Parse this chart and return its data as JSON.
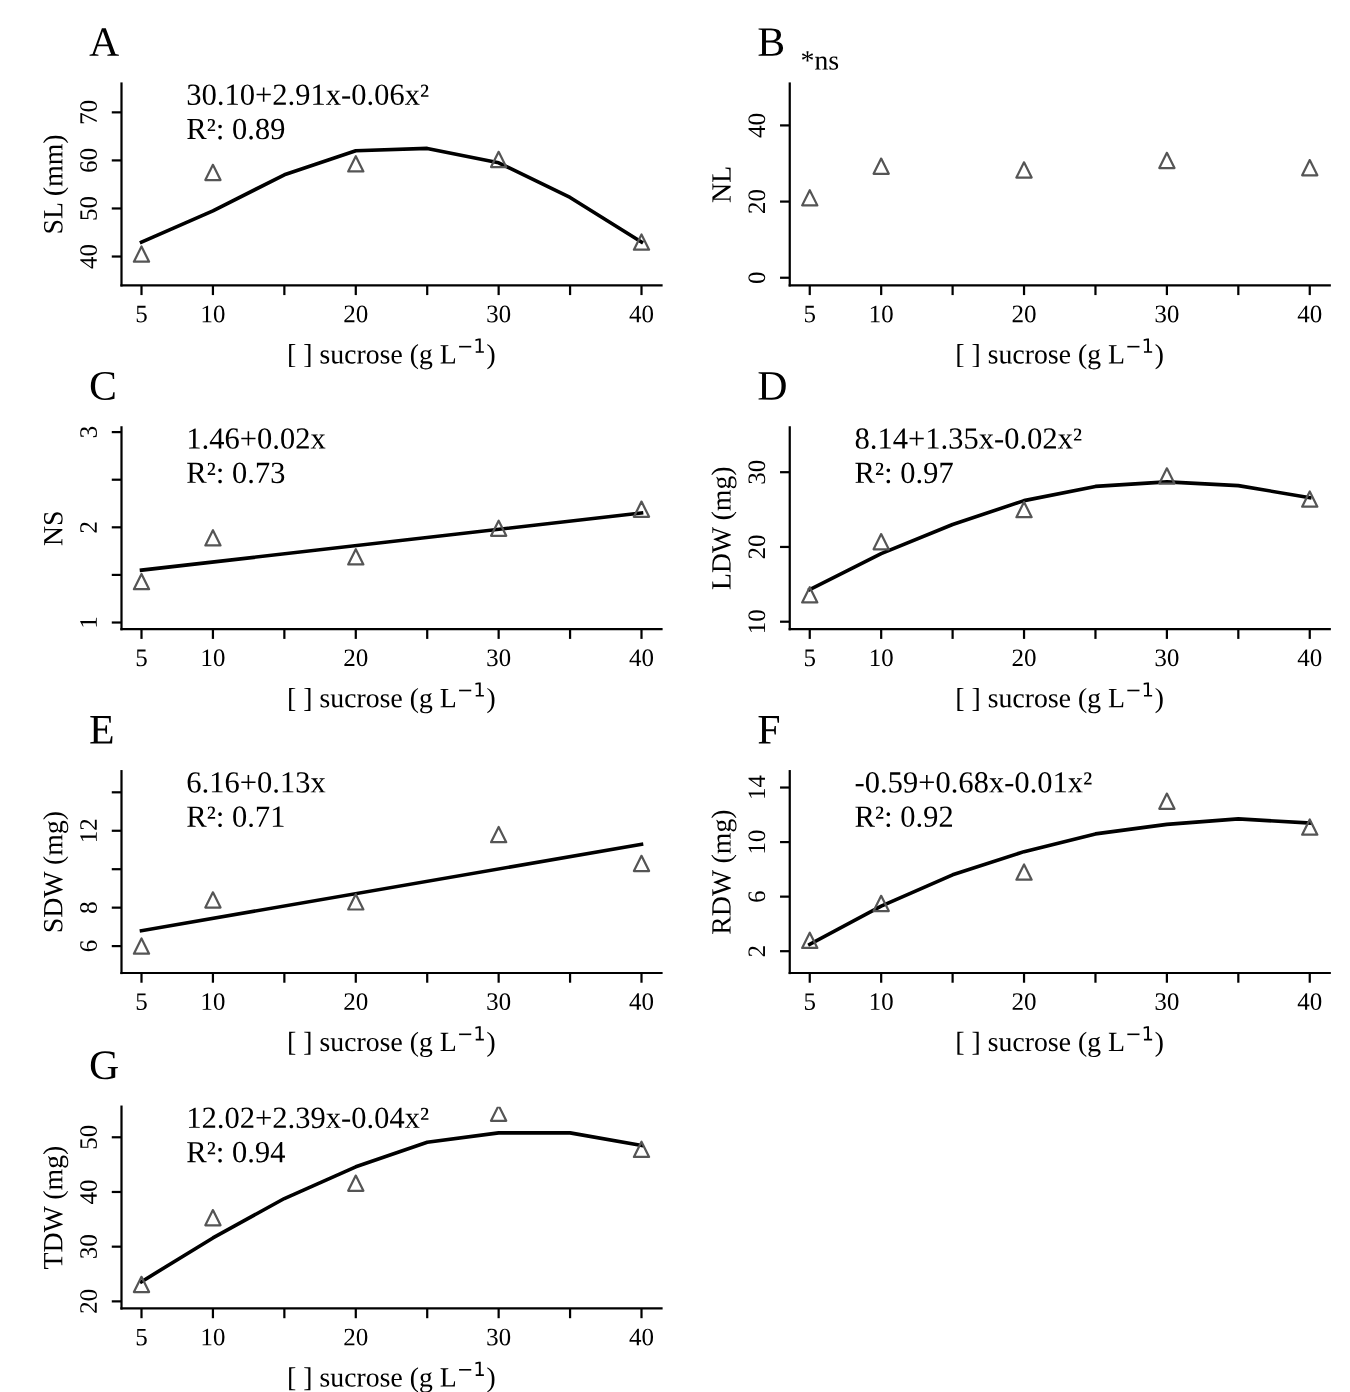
{
  "chart_data": [
    {
      "type": "scatter",
      "title": "A",
      "xlabel": "[ ] sucrose (g L$^{−1}$)",
      "ylabel": "SL (mm)",
      "annotations": [
        "30.10+2.91x-0.06x²",
        "R²: 0.89"
      ],
      "x": [
        5,
        10,
        20,
        30,
        40
      ],
      "xlim": [
        3.6,
        41.4
      ],
      "xticks": [
        5,
        10,
        {
          "value": 15,
          "label": null
        },
        20,
        {
          "value": 25,
          "label": null
        },
        30,
        {
          "value": 35,
          "label": null
        },
        40
      ],
      "ylim": [
        34,
        76
      ],
      "yticks": [
        40,
        50,
        60,
        70
      ],
      "series": [
        {
          "type": "scatter",
          "marker": "triangle",
          "color": "#555555",
          "values": [
            40.5,
            57.5,
            59.3,
            60.2,
            43
          ]
        },
        {
          "type": "line",
          "marker": "none",
          "color": "#000000",
          "x": [
            5,
            10,
            15,
            20,
            25,
            30,
            35,
            40
          ],
          "values": [
            43,
            49.5,
            57,
            62,
            62.5,
            59.5,
            52.3,
            43
          ]
        }
      ]
    },
    {
      "type": "scatter",
      "title": "B",
      "xlabel": "[ ] sucrose (g L$^{−1}$)",
      "ylabel": "NL",
      "annotations": [
        "*ns"
      ],
      "x": [
        5,
        10,
        20,
        30,
        40
      ],
      "xlim": [
        3.6,
        41.4
      ],
      "xticks": [
        5,
        10,
        {
          "value": 15,
          "label": null
        },
        20,
        {
          "value": 25,
          "label": null
        },
        30,
        {
          "value": 35,
          "label": null
        },
        40
      ],
      "ylim": [
        -2,
        51
      ],
      "yticks": [
        0,
        20,
        40
      ],
      "series": [
        {
          "type": "scatter",
          "marker": "triangle",
          "color": "#555555",
          "values": [
            21,
            29.3,
            28.3,
            30.8,
            28.9
          ]
        }
      ]
    },
    {
      "type": "scatter",
      "title": "C",
      "xlabel": "[ ] sucrose (g L$^{−1}$)",
      "ylabel": "NS",
      "annotations": [
        "1.46+0.02x",
        "R²: 0.73"
      ],
      "x": [
        5,
        10,
        20,
        30,
        40
      ],
      "xlim": [
        3.6,
        41.4
      ],
      "xticks": [
        5,
        10,
        {
          "value": 15,
          "label": null
        },
        20,
        {
          "value": 25,
          "label": null
        },
        30,
        {
          "value": 35,
          "label": null
        },
        40
      ],
      "ylim": [
        0.93,
        3.05
      ],
      "yticks": [
        1,
        {
          "value": 1.5,
          "label": null
        },
        2,
        {
          "value": 2.5,
          "label": null
        },
        3
      ],
      "series": [
        {
          "type": "scatter",
          "marker": "triangle",
          "color": "#555555",
          "values": [
            1.43,
            1.89,
            1.69,
            1.99,
            2.19
          ]
        },
        {
          "type": "line",
          "marker": "none",
          "color": "#000000",
          "x": [
            5,
            40
          ],
          "values": [
            1.55,
            2.15
          ]
        }
      ]
    },
    {
      "type": "scatter",
      "title": "D",
      "xlabel": "[ ] sucrose (g L$^{−1}$)",
      "ylabel": "LDW (mg)",
      "annotations": [
        "8.14+1.35x-0.02x²",
        "R²: 0.97"
      ],
      "x": [
        5,
        10,
        20,
        30,
        40
      ],
      "xlim": [
        3.6,
        41.4
      ],
      "xticks": [
        5,
        10,
        {
          "value": 15,
          "label": null
        },
        20,
        {
          "value": 25,
          "label": null
        },
        30,
        {
          "value": 35,
          "label": null
        },
        40
      ],
      "ylim": [
        9,
        36
      ],
      "yticks": [
        10,
        20,
        30
      ],
      "series": [
        {
          "type": "scatter",
          "marker": "triangle",
          "color": "#555555",
          "values": [
            13.6,
            20.7,
            25,
            29.5,
            26.4
          ]
        },
        {
          "type": "line",
          "marker": "none",
          "color": "#000000",
          "x": [
            5,
            10,
            15,
            20,
            25,
            30,
            35,
            40
          ],
          "values": [
            14.3,
            19.1,
            23,
            26.2,
            28.1,
            28.7,
            28.2,
            26.6
          ]
        }
      ]
    },
    {
      "type": "scatter",
      "title": "E",
      "xlabel": "[ ] sucrose (g L$^{−1}$)",
      "ylabel": "SDW (mg)",
      "annotations": [
        "6.16+0.13x",
        "R²: 0.71"
      ],
      "x": [
        5,
        10,
        20,
        30,
        40
      ],
      "xlim": [
        3.6,
        41.4
      ],
      "xticks": [
        5,
        10,
        {
          "value": 15,
          "label": null
        },
        20,
        {
          "value": 25,
          "label": null
        },
        30,
        {
          "value": 35,
          "label": null
        },
        40
      ],
      "ylim": [
        4.6,
        15.1
      ],
      "yticks": [
        6,
        8,
        {
          "value": 10,
          "label": null
        },
        12,
        {
          "value": 14,
          "label": null
        }
      ],
      "series": [
        {
          "type": "scatter",
          "marker": "triangle",
          "color": "#555555",
          "values": [
            6.0,
            8.4,
            8.3,
            11.8,
            10.3
          ]
        },
        {
          "type": "line",
          "marker": "none",
          "color": "#000000",
          "x": [
            5,
            40
          ],
          "values": [
            6.8,
            11.3
          ]
        }
      ]
    },
    {
      "type": "scatter",
      "title": "F",
      "xlabel": "[ ] sucrose (g L$^{−1}$)",
      "ylabel": "RDW (mg)",
      "annotations": [
        "-0.59+0.68x-0.01x²",
        "R²: 0.92"
      ],
      "x": [
        5,
        10,
        20,
        30,
        40
      ],
      "xlim": [
        3.6,
        41.4
      ],
      "xticks": [
        5,
        10,
        {
          "value": 15,
          "label": null
        },
        20,
        {
          "value": 25,
          "label": null
        },
        30,
        {
          "value": 35,
          "label": null
        },
        40
      ],
      "ylim": [
        0.4,
        15.2
      ],
      "yticks": [
        2,
        6,
        10,
        14
      ],
      "series": [
        {
          "type": "scatter",
          "marker": "triangle",
          "color": "#555555",
          "values": [
            2.8,
            5.5,
            7.8,
            13.0,
            11.1
          ]
        },
        {
          "type": "line",
          "marker": "none",
          "color": "#000000",
          "x": [
            5,
            10,
            15,
            20,
            25,
            30,
            35,
            40
          ],
          "values": [
            2.5,
            5.3,
            7.6,
            9.3,
            10.6,
            11.3,
            11.7,
            11.4
          ]
        }
      ]
    },
    {
      "type": "scatter",
      "title": "G",
      "xlabel": "[ ] sucrose (g L$^{−1}$)",
      "ylabel": "TDW (mg)",
      "annotations": [
        "12.02+2.39x-0.04x²",
        "R²: 0.94"
      ],
      "x": [
        5,
        10,
        20,
        30,
        40
      ],
      "xlim": [
        3.6,
        41.4
      ],
      "xticks": [
        5,
        10,
        {
          "value": 15,
          "label": null
        },
        20,
        {
          "value": 25,
          "label": null
        },
        30,
        {
          "value": 35,
          "label": null
        },
        40
      ],
      "ylim": [
        18.7,
        55.6
      ],
      "yticks": [
        20,
        30,
        40,
        50
      ],
      "series": [
        {
          "type": "scatter",
          "marker": "triangle",
          "color": "#555555",
          "values": [
            23.1,
            35.3,
            41.6,
            54.4,
            47.8
          ]
        },
        {
          "type": "line",
          "marker": "none",
          "color": "#000000",
          "x": [
            5,
            10,
            15,
            20,
            25,
            30,
            35,
            40
          ],
          "values": [
            23.6,
            31.6,
            38.8,
            44.6,
            49.1,
            50.8,
            50.8,
            48.5
          ]
        }
      ]
    }
  ]
}
